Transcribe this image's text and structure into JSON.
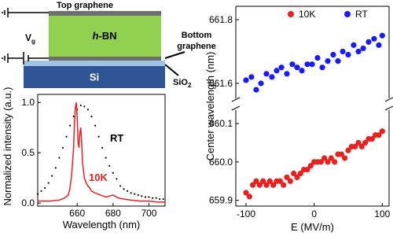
{
  "diagram": {
    "top_graphene": "Top graphene",
    "hbn": {
      "italic": "h",
      "rest": "-BN"
    },
    "bottom_graphene": [
      "Bottom",
      "graphene"
    ],
    "si": "Si",
    "sio2": {
      "main": "SiO",
      "sub": "2"
    },
    "gate": {
      "main": "V",
      "sub": "g"
    }
  },
  "chart_data": [
    {
      "type": "line",
      "x_label": "Wavelength (nm)",
      "y_label": "Normalized intensity (a.u.)",
      "xlim": [
        638,
        709
      ],
      "xticks": [
        660,
        680,
        700
      ],
      "ylim": [
        -0.03,
        1.08
      ],
      "yticks": [
        {
          "value": 0,
          "label": "0.0"
        },
        {
          "value": 0.5,
          "label": "0.5"
        },
        {
          "value": 1,
          "label": "1.0"
        }
      ],
      "series": [
        {
          "name": "RT",
          "color": "#000000",
          "style": "dots",
          "x": [
            638,
            640,
            642,
            644,
            646,
            648,
            650,
            652,
            654,
            656,
            658,
            660,
            662,
            664,
            666,
            668,
            670,
            672,
            674,
            676,
            678,
            680,
            682,
            684,
            686,
            688,
            690,
            692,
            694,
            696,
            698,
            700,
            702,
            704,
            706,
            708
          ],
          "values": [
            0.09,
            0.12,
            0.15,
            0.2,
            0.27,
            0.35,
            0.45,
            0.55,
            0.66,
            0.77,
            0.86,
            0.93,
            0.97,
            0.96,
            0.93,
            0.86,
            0.77,
            0.66,
            0.55,
            0.45,
            0.37,
            0.3,
            0.24,
            0.17,
            0.14,
            0.12,
            0.1,
            0.09,
            0.08,
            0.07,
            0.06,
            0.06,
            0.05,
            0.05,
            0.04,
            0.04
          ]
        },
        {
          "name": "10K",
          "color": "#e8201e",
          "style": "line",
          "x": [
            638,
            645,
            650,
            653,
            655,
            656,
            657,
            658,
            658.5,
            659,
            659.5,
            660,
            660.5,
            661,
            661.5,
            662,
            662.5,
            663,
            664,
            665,
            666,
            667,
            668,
            670,
            673,
            676,
            678,
            680,
            683,
            686,
            690,
            695,
            700,
            705,
            709
          ],
          "values": [
            0.02,
            0.02,
            0.03,
            0.05,
            0.08,
            0.15,
            0.3,
            0.55,
            0.8,
            0.95,
            1.0,
            0.85,
            0.6,
            0.55,
            0.7,
            0.75,
            0.6,
            0.4,
            0.25,
            0.2,
            0.17,
            0.15,
            0.12,
            0.1,
            0.08,
            0.06,
            0.07,
            0.08,
            0.05,
            0.04,
            0.03,
            0.02,
            0.02,
            0.01,
            0.01
          ]
        }
      ]
    },
    {
      "type": "scatter",
      "x_label": "E (MV/m)",
      "y_label": "Center wavelength (nm)",
      "legend": "top",
      "xlim": [
        -115,
        110
      ],
      "xticks": [
        -100,
        0,
        100
      ],
      "series": [
        {
          "name": "10K",
          "color": "#e8201e",
          "ylim": [
            659.885,
            660.135
          ],
          "yticks": [
            659.9,
            {
              "value": 660,
              "label": "660.0"
            },
            660.1
          ],
          "x": [
            -100,
            -95,
            -90,
            -85,
            -80,
            -75,
            -70,
            -65,
            -60,
            -55,
            -50,
            -45,
            -40,
            -35,
            -30,
            -25,
            -20,
            -15,
            -10,
            -5,
            0,
            5,
            10,
            15,
            20,
            25,
            30,
            35,
            40,
            45,
            50,
            55,
            60,
            65,
            70,
            75,
            80,
            85,
            90,
            95,
            100
          ],
          "values": [
            659.92,
            659.91,
            659.94,
            659.95,
            659.94,
            659.95,
            659.94,
            659.95,
            659.94,
            659.95,
            659.95,
            659.94,
            659.96,
            659.95,
            659.97,
            659.96,
            659.97,
            659.98,
            659.98,
            659.99,
            660.0,
            660.0,
            660.0,
            660.01,
            660.0,
            660.01,
            660.0,
            660.02,
            660.02,
            660.01,
            660.03,
            660.04,
            660.04,
            660.05,
            660.04,
            660.05,
            660.06,
            660.06,
            660.07,
            660.07,
            660.08
          ]
        },
        {
          "name": "RT",
          "color": "#1a1aff",
          "ylim": [
            661.553,
            661.842
          ],
          "yticks": [
            661.6,
            661.8
          ],
          "x": [
            -100,
            -92,
            -85,
            -78,
            -70,
            -62,
            -55,
            -48,
            -40,
            -32,
            -25,
            -18,
            -10,
            -3,
            5,
            12,
            20,
            28,
            35,
            42,
            50,
            58,
            65,
            72,
            80,
            88,
            95,
            100
          ],
          "values": [
            661.61,
            661.62,
            661.58,
            661.6,
            661.63,
            661.62,
            661.64,
            661.65,
            661.63,
            661.66,
            661.65,
            661.64,
            661.66,
            661.66,
            661.68,
            661.65,
            661.67,
            661.69,
            661.67,
            661.7,
            661.69,
            661.72,
            661.7,
            661.71,
            661.73,
            661.74,
            661.72,
            661.75
          ]
        }
      ]
    }
  ]
}
